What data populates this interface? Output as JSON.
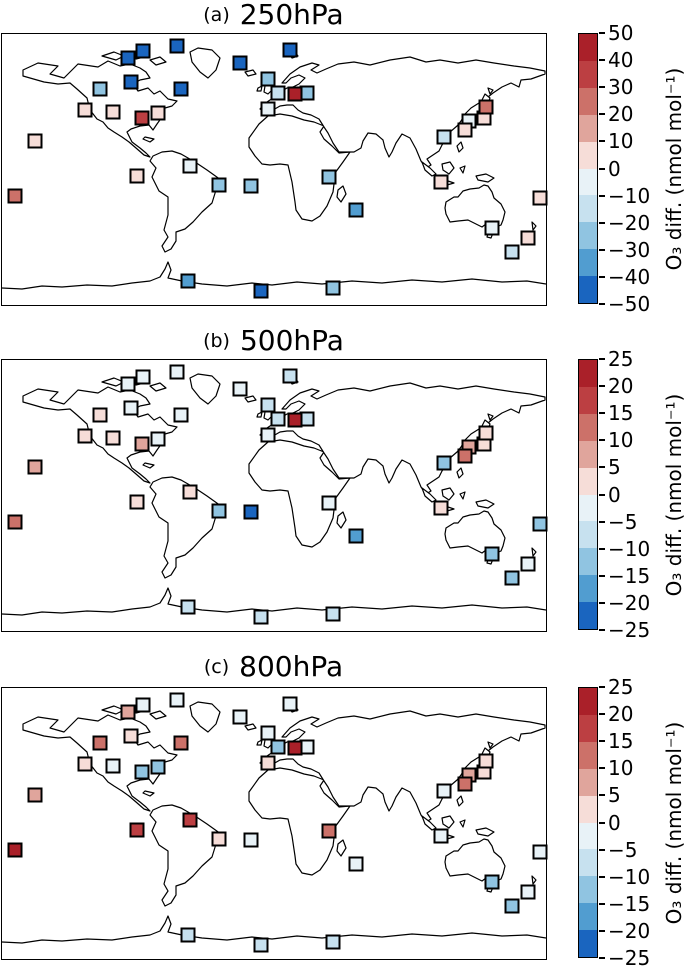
{
  "colorbar_label": "O₃ diff. (nmol mol⁻¹)",
  "palette": {
    "r5": "#aa2029",
    "r4": "#bc3f42",
    "r3": "#cc7169",
    "r2": "#e0a59c",
    "r1": "#f6ddd8",
    "b1": "#e8f2f7",
    "b2": "#c7e1ef",
    "b3": "#90c4e1",
    "b4": "#519dd0",
    "b5": "#1a65bf"
  },
  "colorbar_order": [
    "r5",
    "r4",
    "r3",
    "r2",
    "r1",
    "b1",
    "b2",
    "b3",
    "b4",
    "b5"
  ],
  "stations": [
    {
      "id": "arctic-1",
      "fx": 0.232,
      "fy": 0.089
    },
    {
      "id": "arctic-2",
      "fx": 0.259,
      "fy": 0.063
    },
    {
      "id": "arctic-3",
      "fx": 0.322,
      "fy": 0.044
    },
    {
      "id": "greenland",
      "fx": 0.438,
      "fy": 0.107
    },
    {
      "id": "scandinavia-n",
      "fx": 0.529,
      "fy": 0.059
    },
    {
      "id": "canada-n",
      "fx": 0.237,
      "fy": 0.177
    },
    {
      "id": "canada-w",
      "fx": 0.18,
      "fy": 0.203
    },
    {
      "id": "canada-e",
      "fx": 0.329,
      "fy": 0.203
    },
    {
      "id": "us-west",
      "fx": 0.153,
      "fy": 0.28
    },
    {
      "id": "us-central",
      "fx": 0.204,
      "fy": 0.288
    },
    {
      "id": "us-east",
      "fx": 0.287,
      "fy": 0.292
    },
    {
      "id": "us-southeast",
      "fx": 0.257,
      "fy": 0.31
    },
    {
      "id": "pacific-ne",
      "fx": 0.061,
      "fy": 0.395
    },
    {
      "id": "pacific-c",
      "fx": 0.024,
      "fy": 0.598
    },
    {
      "id": "europe-nw",
      "fx": 0.489,
      "fy": 0.166
    },
    {
      "id": "europe-w",
      "fx": 0.507,
      "fy": 0.218
    },
    {
      "id": "europe-e",
      "fx": 0.561,
      "fy": 0.218
    },
    {
      "id": "europe-c",
      "fx": 0.539,
      "fy": 0.221
    },
    {
      "id": "europe-sw",
      "fx": 0.489,
      "fy": 0.277
    },
    {
      "id": "japan-c",
      "fx": 0.886,
      "fy": 0.31
    },
    {
      "id": "japan-n",
      "fx": 0.89,
      "fy": 0.269
    },
    {
      "id": "korea",
      "fx": 0.858,
      "fy": 0.321
    },
    {
      "id": "japan-s",
      "fx": 0.851,
      "fy": 0.354
    },
    {
      "id": "china-e",
      "fx": 0.812,
      "fy": 0.38
    },
    {
      "id": "indonesia",
      "fx": 0.807,
      "fy": 0.546
    },
    {
      "id": "caribbean-w",
      "fx": 0.248,
      "fy": 0.524
    },
    {
      "id": "caribbean-e",
      "fx": 0.346,
      "fy": 0.487
    },
    {
      "id": "brazil-ne",
      "fx": 0.399,
      "fy": 0.557
    },
    {
      "id": "atlantic-c",
      "fx": 0.458,
      "fy": 0.561
    },
    {
      "id": "africa-e",
      "fx": 0.601,
      "fy": 0.528
    },
    {
      "id": "indian-ocean",
      "fx": 0.651,
      "fy": 0.649
    },
    {
      "id": "australia-se",
      "fx": 0.901,
      "fy": 0.716
    },
    {
      "id": "nz-north",
      "fx": 0.967,
      "fy": 0.753
    },
    {
      "id": "nz-south",
      "fx": 0.938,
      "fy": 0.804
    },
    {
      "id": "pacific-sw",
      "fx": 0.989,
      "fy": 0.605
    },
    {
      "id": "antarctica-1",
      "fx": 0.342,
      "fy": 0.911
    },
    {
      "id": "antarctica-2",
      "fx": 0.476,
      "fy": 0.948
    },
    {
      "id": "antarctica-3",
      "fx": 0.608,
      "fy": 0.937
    }
  ],
  "panels": [
    {
      "id": "a",
      "index_label": "(a)",
      "title": "250hPa",
      "colorbar_ticks": [
        "50",
        "40",
        "30",
        "20",
        "10",
        "0",
        "−10",
        "−20",
        "−30",
        "−40",
        "−50"
      ],
      "marker_bins": [
        "b5",
        "b5",
        "b5",
        "b5",
        "b5",
        "b5",
        "b3",
        "b5",
        "r1",
        "r1",
        "r1",
        "r4",
        "r1",
        "r3",
        "b3",
        "b2",
        "b3",
        "r5",
        "b1",
        "r1",
        "r3",
        "b1",
        "r1",
        "b2",
        "r1",
        "r1",
        "b1",
        "b3",
        "b3",
        "b3",
        "b4",
        "b1",
        "r1",
        "b2",
        "r1",
        "b4",
        "b5",
        "b3"
      ]
    },
    {
      "id": "b",
      "index_label": "(b)",
      "title": "500hPa",
      "colorbar_ticks": [
        "25",
        "20",
        "15",
        "10",
        "5",
        "0",
        "−5",
        "−10",
        "−15",
        "−20",
        "−25"
      ],
      "marker_bins": [
        "b1",
        "b1",
        "b1",
        "b1",
        "b2",
        "b1",
        "r1",
        "b1",
        "r1",
        "r1",
        "b1",
        "r2",
        "r2",
        "r3",
        "b2",
        "b2",
        "b2",
        "r5",
        "b1",
        "r1",
        "r1",
        "r2",
        "r3",
        "b3",
        "r1",
        "r1",
        "r1",
        "b3",
        "b5",
        "b1",
        "b4",
        "b3",
        "b1",
        "b3",
        "b3",
        "b2",
        "b2",
        "b2"
      ]
    },
    {
      "id": "c",
      "index_label": "(c)",
      "title": "800hPa",
      "colorbar_ticks": [
        "25",
        "20",
        "15",
        "10",
        "5",
        "0",
        "−5",
        "−10",
        "−15",
        "−20",
        "−25"
      ],
      "marker_bins": [
        "r2",
        "b1",
        "b1",
        "b1",
        "b1",
        "r1",
        "r3",
        "r3",
        "r1",
        "b1",
        "b3",
        "b3",
        "r2",
        "r5",
        "b1",
        "b3",
        "b1",
        "r5",
        "r1",
        "r1",
        "r1",
        "r2",
        "r3",
        "b1",
        "b1",
        "r4",
        "r4",
        "r1",
        "b1",
        "r3",
        "b1",
        "b3",
        "b1",
        "b3",
        "b1",
        "b2",
        "b2",
        "b2"
      ]
    }
  ],
  "chart_data": {
    "type": "scatter",
    "subtype": "world-map-station-markers",
    "unit": "nmol mol⁻¹",
    "colorbar_label": "O₃ diff. (nmol mol⁻¹)",
    "panels": [
      {
        "label": "(a)",
        "level": "250hPa",
        "colorbar_range": [
          -50,
          50
        ],
        "colorbar_step": 10
      },
      {
        "label": "(b)",
        "level": "500hPa",
        "colorbar_range": [
          -25,
          25
        ],
        "colorbar_step": 5
      },
      {
        "label": "(c)",
        "level": "800hPa",
        "colorbar_range": [
          -25,
          25
        ],
        "colorbar_step": 5
      }
    ],
    "points": [
      {
        "station": "arctic-1",
        "x_frac": 0.232,
        "y_frac": 0.089,
        "o3_diff": {
          "250hPa": -45,
          "500hPa": -2.5,
          "800hPa": 7.5
        }
      },
      {
        "station": "arctic-2",
        "x_frac": 0.259,
        "y_frac": 0.063,
        "o3_diff": {
          "250hPa": -45,
          "500hPa": -2.5,
          "800hPa": -2.5
        }
      },
      {
        "station": "arctic-3",
        "x_frac": 0.322,
        "y_frac": 0.044,
        "o3_diff": {
          "250hPa": -45,
          "500hPa": -2.5,
          "800hPa": -2.5
        }
      },
      {
        "station": "greenland",
        "x_frac": 0.438,
        "y_frac": 0.107,
        "o3_diff": {
          "250hPa": -45,
          "500hPa": -2.5,
          "800hPa": -2.5
        }
      },
      {
        "station": "scandinavia-n",
        "x_frac": 0.529,
        "y_frac": 0.059,
        "o3_diff": {
          "250hPa": -45,
          "500hPa": -7.5,
          "800hPa": -2.5
        }
      },
      {
        "station": "canada-n",
        "x_frac": 0.237,
        "y_frac": 0.177,
        "o3_diff": {
          "250hPa": -45,
          "500hPa": -2.5,
          "800hPa": 2.5
        }
      },
      {
        "station": "canada-w",
        "x_frac": 0.18,
        "y_frac": 0.203,
        "o3_diff": {
          "250hPa": -25,
          "500hPa": 2.5,
          "800hPa": 12.5
        }
      },
      {
        "station": "canada-e",
        "x_frac": 0.329,
        "y_frac": 0.203,
        "o3_diff": {
          "250hPa": -45,
          "500hPa": -2.5,
          "800hPa": 12.5
        }
      },
      {
        "station": "us-west",
        "x_frac": 0.153,
        "y_frac": 0.28,
        "o3_diff": {
          "250hPa": 5,
          "500hPa": 2.5,
          "800hPa": 2.5
        }
      },
      {
        "station": "us-central",
        "x_frac": 0.204,
        "y_frac": 0.288,
        "o3_diff": {
          "250hPa": 5,
          "500hPa": 2.5,
          "800hPa": -2.5
        }
      },
      {
        "station": "us-east",
        "x_frac": 0.287,
        "y_frac": 0.292,
        "o3_diff": {
          "250hPa": 5,
          "500hPa": -2.5,
          "800hPa": -12.5
        }
      },
      {
        "station": "us-southeast",
        "x_frac": 0.257,
        "y_frac": 0.31,
        "o3_diff": {
          "250hPa": 35,
          "500hPa": 7.5,
          "800hPa": -12.5
        }
      },
      {
        "station": "pacific-ne",
        "x_frac": 0.061,
        "y_frac": 0.395,
        "o3_diff": {
          "250hPa": 5,
          "500hPa": 7.5,
          "800hPa": 7.5
        }
      },
      {
        "station": "pacific-c",
        "x_frac": 0.024,
        "y_frac": 0.598,
        "o3_diff": {
          "250hPa": 25,
          "500hPa": 12.5,
          "800hPa": 22.5
        }
      },
      {
        "station": "europe-nw",
        "x_frac": 0.489,
        "y_frac": 0.166,
        "o3_diff": {
          "250hPa": -25,
          "500hPa": -7.5,
          "800hPa": -2.5
        }
      },
      {
        "station": "europe-w",
        "x_frac": 0.507,
        "y_frac": 0.218,
        "o3_diff": {
          "250hPa": -15,
          "500hPa": -7.5,
          "800hPa": -12.5
        }
      },
      {
        "station": "europe-e",
        "x_frac": 0.561,
        "y_frac": 0.218,
        "o3_diff": {
          "250hPa": -25,
          "500hPa": -7.5,
          "800hPa": -2.5
        }
      },
      {
        "station": "europe-c",
        "x_frac": 0.539,
        "y_frac": 0.221,
        "o3_diff": {
          "250hPa": 45,
          "500hPa": 22.5,
          "800hPa": 22.5
        }
      },
      {
        "station": "europe-sw",
        "x_frac": 0.489,
        "y_frac": 0.277,
        "o3_diff": {
          "250hPa": -5,
          "500hPa": -2.5,
          "800hPa": 2.5
        }
      },
      {
        "station": "japan-c",
        "x_frac": 0.886,
        "y_frac": 0.31,
        "o3_diff": {
          "250hPa": 5,
          "500hPa": 2.5,
          "800hPa": 2.5
        }
      },
      {
        "station": "japan-n",
        "x_frac": 0.89,
        "y_frac": 0.269,
        "o3_diff": {
          "250hPa": 25,
          "500hPa": 2.5,
          "800hPa": 2.5
        }
      },
      {
        "station": "korea",
        "x_frac": 0.858,
        "y_frac": 0.321,
        "o3_diff": {
          "250hPa": -5,
          "500hPa": 7.5,
          "800hPa": 7.5
        }
      },
      {
        "station": "japan-s",
        "x_frac": 0.851,
        "y_frac": 0.354,
        "o3_diff": {
          "250hPa": 5,
          "500hPa": 12.5,
          "800hPa": 12.5
        }
      },
      {
        "station": "china-e",
        "x_frac": 0.812,
        "y_frac": 0.38,
        "o3_diff": {
          "250hPa": -15,
          "500hPa": -12.5,
          "800hPa": -2.5
        }
      },
      {
        "station": "indonesia",
        "x_frac": 0.807,
        "y_frac": 0.546,
        "o3_diff": {
          "250hPa": 5,
          "500hPa": 2.5,
          "800hPa": -2.5
        }
      },
      {
        "station": "caribbean-w",
        "x_frac": 0.248,
        "y_frac": 0.524,
        "o3_diff": {
          "250hPa": 5,
          "500hPa": 2.5,
          "800hPa": 17.5
        }
      },
      {
        "station": "caribbean-e",
        "x_frac": 0.346,
        "y_frac": 0.487,
        "o3_diff": {
          "250hPa": -5,
          "500hPa": 2.5,
          "800hPa": 17.5
        }
      },
      {
        "station": "brazil-ne",
        "x_frac": 0.399,
        "y_frac": 0.557,
        "o3_diff": {
          "250hPa": -25,
          "500hPa": -12.5,
          "800hPa": 2.5
        }
      },
      {
        "station": "atlantic-c",
        "x_frac": 0.458,
        "y_frac": 0.561,
        "o3_diff": {
          "250hPa": -25,
          "500hPa": -22.5,
          "800hPa": -2.5
        }
      },
      {
        "station": "africa-e",
        "x_frac": 0.601,
        "y_frac": 0.528,
        "o3_diff": {
          "250hPa": -25,
          "500hPa": -2.5,
          "800hPa": 12.5
        }
      },
      {
        "station": "indian-ocean",
        "x_frac": 0.651,
        "y_frac": 0.649,
        "o3_diff": {
          "250hPa": -35,
          "500hPa": -17.5,
          "800hPa": -2.5
        }
      },
      {
        "station": "australia-se",
        "x_frac": 0.901,
        "y_frac": 0.716,
        "o3_diff": {
          "250hPa": -5,
          "500hPa": -12.5,
          "800hPa": -12.5
        }
      },
      {
        "station": "nz-north",
        "x_frac": 0.967,
        "y_frac": 0.753,
        "o3_diff": {
          "250hPa": 5,
          "500hPa": -2.5,
          "800hPa": -2.5
        }
      },
      {
        "station": "nz-south",
        "x_frac": 0.938,
        "y_frac": 0.804,
        "o3_diff": {
          "250hPa": -15,
          "500hPa": -12.5,
          "800hPa": -12.5
        }
      },
      {
        "station": "pacific-sw",
        "x_frac": 0.989,
        "y_frac": 0.605,
        "o3_diff": {
          "250hPa": 5,
          "500hPa": -12.5,
          "800hPa": -2.5
        }
      },
      {
        "station": "antarctica-1",
        "x_frac": 0.342,
        "y_frac": 0.911,
        "o3_diff": {
          "250hPa": -35,
          "500hPa": -7.5,
          "800hPa": -7.5
        }
      },
      {
        "station": "antarctica-2",
        "x_frac": 0.476,
        "y_frac": 0.948,
        "o3_diff": {
          "250hPa": -45,
          "500hPa": -7.5,
          "800hPa": -7.5
        }
      },
      {
        "station": "antarctica-3",
        "x_frac": 0.608,
        "y_frac": 0.937,
        "o3_diff": {
          "250hPa": -25,
          "500hPa": -7.5,
          "800hPa": -7.5
        }
      }
    ]
  }
}
